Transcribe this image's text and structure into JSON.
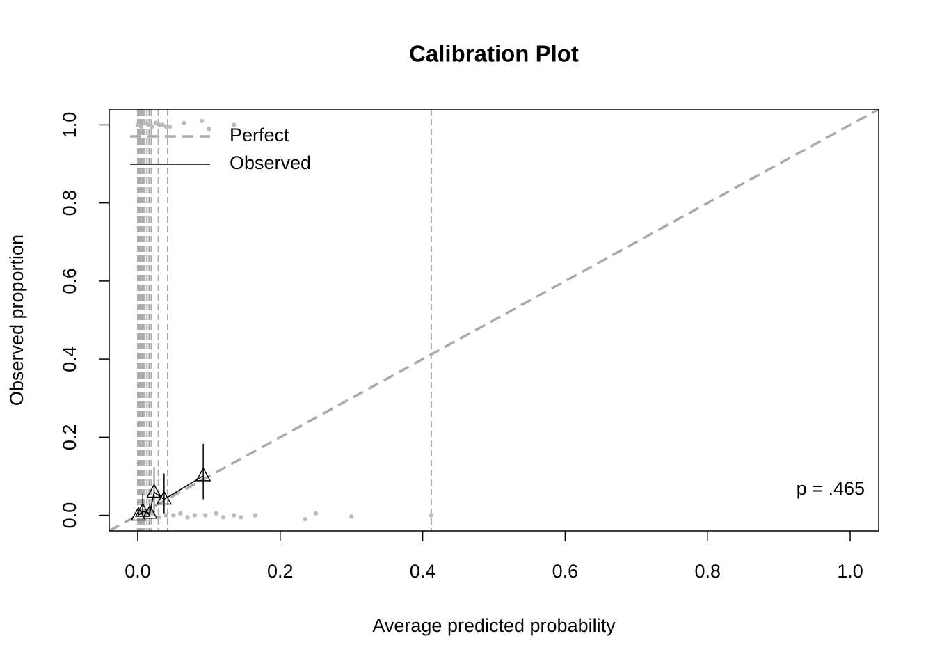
{
  "chart_data": {
    "type": "calibration",
    "title": "Calibration Plot",
    "xlabel": "Average predicted probability",
    "ylabel": "Observed proportion",
    "annotation": "p = .465",
    "legend": "topleft",
    "xlim": [
      -0.04,
      1.04
    ],
    "ylim": [
      -0.04,
      1.04
    ],
    "xticks": [
      {
        "value": 0,
        "label": "0.0"
      },
      0.2,
      0.4,
      0.6,
      0.8,
      {
        "value": 1,
        "label": "1.0"
      }
    ],
    "yticks": [
      {
        "value": 0,
        "label": "0.0"
      },
      0.2,
      0.4,
      0.6,
      0.8,
      {
        "value": 1,
        "label": "1.0"
      }
    ],
    "bin_edges": {
      "color": "#aaaaaa",
      "x": [
        0.0,
        0.002,
        0.004,
        0.006,
        0.008,
        0.01,
        0.013,
        0.016,
        0.019,
        0.029,
        0.042,
        0.412
      ]
    },
    "rug": {
      "color": "#bbbbbb",
      "x": [
        0.0,
        0.005,
        0.01,
        0.015,
        0.02,
        0.025,
        0.03,
        0.035,
        0.04,
        0.045,
        0.065,
        0.09,
        0.1,
        0.135,
        0.01,
        0.02,
        0.03,
        0.04,
        0.05,
        0.06,
        0.07,
        0.08,
        0.095,
        0.11,
        0.12,
        0.135,
        0.145,
        0.165,
        0.235,
        0.25,
        0.3,
        0.412
      ],
      "values": [
        1.0,
        0.995,
        1.005,
        1.0,
        0.995,
        1.005,
        1.0,
        1.0,
        0.995,
        0.995,
        1.005,
        1.01,
        0.99,
        1.0,
        0.0,
        0.005,
        -0.005,
        0.0,
        0.0,
        0.005,
        -0.005,
        0.0,
        0.0,
        0.005,
        -0.005,
        0.0,
        -0.005,
        0.0,
        -0.01,
        0.005,
        -0.003,
        0.0
      ]
    },
    "series": [
      {
        "name": "Perfect",
        "color": "#aaaaaa",
        "x": [
          -0.04,
          1.04
        ],
        "values": [
          -0.04,
          1.04
        ]
      },
      {
        "name": "Observed",
        "color": "#000000",
        "x": [
          0.001,
          0.007,
          0.017,
          0.023,
          0.037,
          0.092
        ],
        "values": [
          0.0,
          0.01,
          0.005,
          0.059,
          0.041,
          0.101
        ],
        "lower": [
          0.0,
          0.0,
          0.0,
          0.005,
          0.005,
          0.041
        ],
        "upper": [
          0.01,
          0.055,
          0.03,
          0.123,
          0.107,
          0.183
        ]
      }
    ]
  }
}
